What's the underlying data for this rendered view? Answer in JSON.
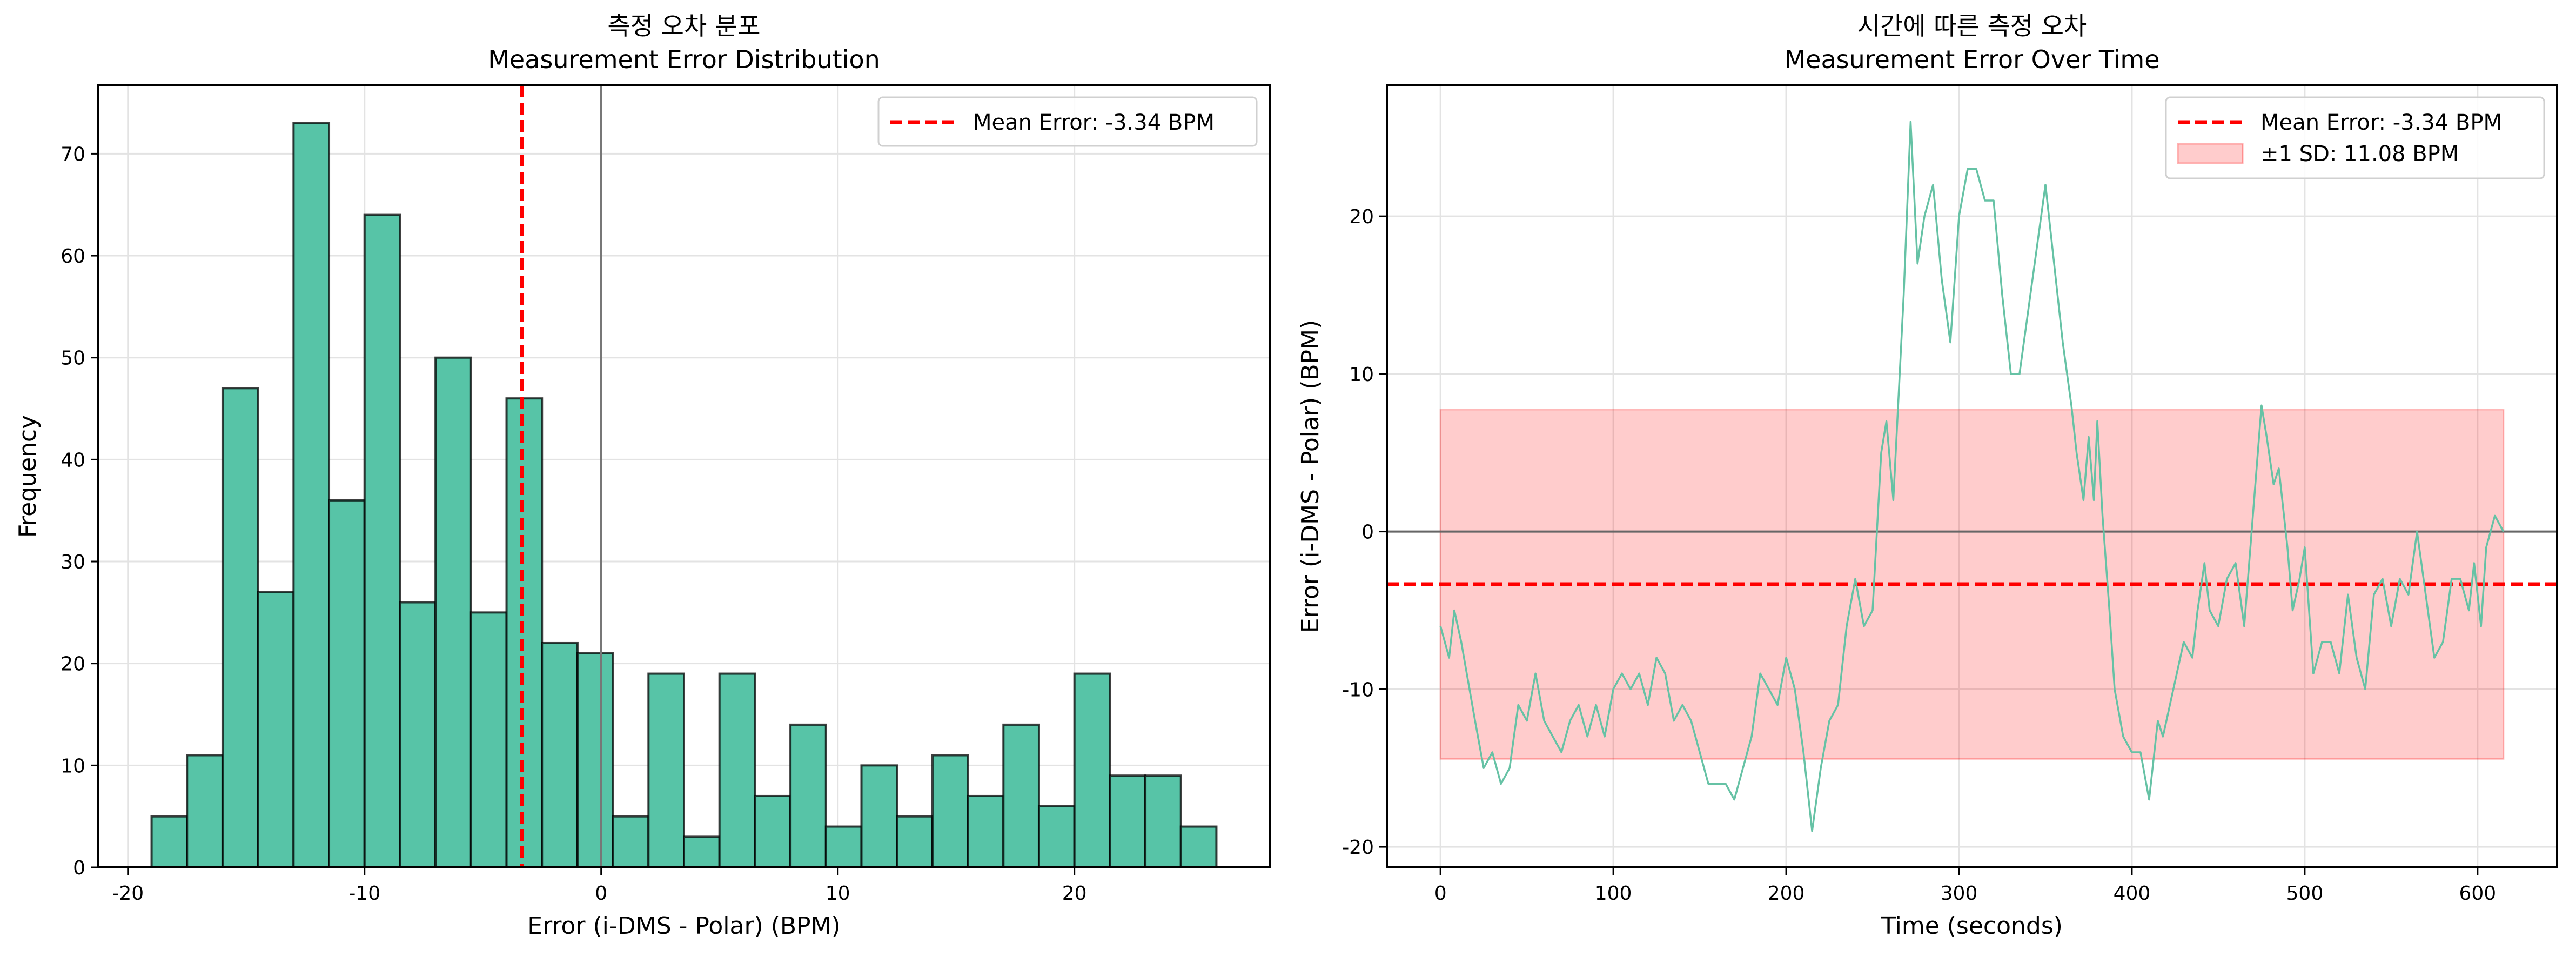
{
  "chart_data": [
    {
      "type": "bar",
      "title": [
        "측정 오차 분포",
        "Measurement Error Distribution"
      ],
      "xlabel": "Error (i-DMS - Polar) (BPM)",
      "ylabel": "Frequency",
      "xlim": [
        -21.25,
        28.25
      ],
      "ylim": [
        0,
        76.7
      ],
      "xticks": [
        -20,
        -10,
        0,
        10,
        20
      ],
      "yticks": [
        0,
        10,
        20,
        30,
        40,
        50,
        60,
        70
      ],
      "grid": true,
      "bin_start": -19,
      "bin_width": 1.5,
      "values": [
        5,
        11,
        47,
        27,
        73,
        36,
        64,
        26,
        50,
        25,
        46,
        22,
        21,
        5,
        19,
        3,
        19,
        7,
        14,
        4,
        10,
        5,
        11,
        7,
        14,
        6,
        19,
        9,
        9,
        4
      ],
      "bar_color": "#57c4a7",
      "reference_line": 0,
      "mean_line": {
        "value": -3.34,
        "label": "Mean Error: -3.34 BPM",
        "color": "#ff0000"
      },
      "legend": {
        "placement": "top-right",
        "entries": [
          "Mean Error: -3.34 BPM"
        ]
      }
    },
    {
      "type": "line",
      "title": [
        "시간에 따른 측정 오차",
        "Measurement Error Over Time"
      ],
      "xlabel": "Time (seconds)",
      "ylabel": "Error (i-DMS - Polar) (BPM)",
      "xlim": [
        -31,
        646
      ],
      "ylim": [
        -21.3,
        28.3
      ],
      "xticks": [
        0,
        100,
        200,
        300,
        400,
        500,
        600
      ],
      "yticks": [
        -20,
        -10,
        0,
        10,
        20
      ],
      "grid": true,
      "line_color": "#66c2a5",
      "reference_line": 0,
      "mean_line": {
        "value": -3.34,
        "label": "Mean Error: -3.34 BPM",
        "color": "#ff0000"
      },
      "sd_band": {
        "lower": -14.42,
        "upper": 7.74,
        "x_range": [
          0,
          615
        ],
        "label": "±1 SD: 11.08 BPM",
        "color": "#ff0000"
      },
      "legend": {
        "placement": "top-right",
        "entries": [
          "Mean Error: -3.34 BPM",
          "±1 SD: 11.08 BPM"
        ]
      },
      "x": [
        0,
        5,
        8,
        12,
        20,
        25,
        30,
        35,
        40,
        45,
        50,
        55,
        60,
        65,
        70,
        75,
        80,
        85,
        90,
        95,
        100,
        105,
        110,
        115,
        120,
        125,
        130,
        135,
        140,
        145,
        150,
        155,
        160,
        165,
        170,
        175,
        180,
        185,
        190,
        195,
        200,
        205,
        210,
        215,
        220,
        225,
        230,
        235,
        240,
        245,
        250,
        255,
        258,
        262,
        268,
        272,
        276,
        280,
        285,
        290,
        295,
        300,
        305,
        310,
        315,
        320,
        325,
        330,
        335,
        340,
        345,
        350,
        355,
        360,
        365,
        368,
        372,
        375,
        378,
        380,
        383,
        387,
        390,
        395,
        400,
        405,
        410,
        415,
        418,
        422,
        430,
        435,
        438,
        442,
        445,
        450,
        455,
        460,
        465,
        470,
        475,
        478,
        482,
        485,
        490,
        493,
        497,
        500,
        505,
        510,
        515,
        520,
        525,
        530,
        535,
        540,
        545,
        550,
        555,
        560,
        565,
        570,
        575,
        580,
        585,
        590,
        595,
        598,
        602,
        605,
        610,
        615
      ],
      "y": [
        -6,
        -8,
        -5,
        -7,
        -12,
        -15,
        -14,
        -16,
        -15,
        -11,
        -12,
        -9,
        -12,
        -13,
        -14,
        -12,
        -11,
        -13,
        -11,
        -13,
        -10,
        -9,
        -10,
        -9,
        -11,
        -8,
        -9,
        -12,
        -11,
        -12,
        -14,
        -16,
        -16,
        -16,
        -17,
        -15,
        -13,
        -9,
        -10,
        -11,
        -8,
        -10,
        -14,
        -19,
        -15,
        -12,
        -11,
        -6,
        -3,
        -6,
        -5,
        5,
        7,
        2,
        15,
        26,
        17,
        20,
        22,
        16,
        12,
        20,
        23,
        23,
        21,
        21,
        15,
        10,
        10,
        14,
        18,
        22,
        17,
        12,
        8,
        5,
        2,
        6,
        2,
        7,
        1,
        -5,
        -10,
        -13,
        -14,
        -14,
        -17,
        -12,
        -13,
        -11,
        -7,
        -8,
        -5,
        -2,
        -5,
        -6,
        -3,
        -2,
        -6,
        1,
        8,
        6,
        3,
        4,
        -1,
        -5,
        -3,
        -1,
        -9,
        -7,
        -7,
        -9,
        -4,
        -8,
        -10,
        -4,
        -3,
        -6,
        -3,
        -4,
        0,
        -4,
        -8,
        -7,
        -3,
        -3,
        -5,
        -2,
        -6,
        -1,
        1,
        0
      ]
    }
  ]
}
